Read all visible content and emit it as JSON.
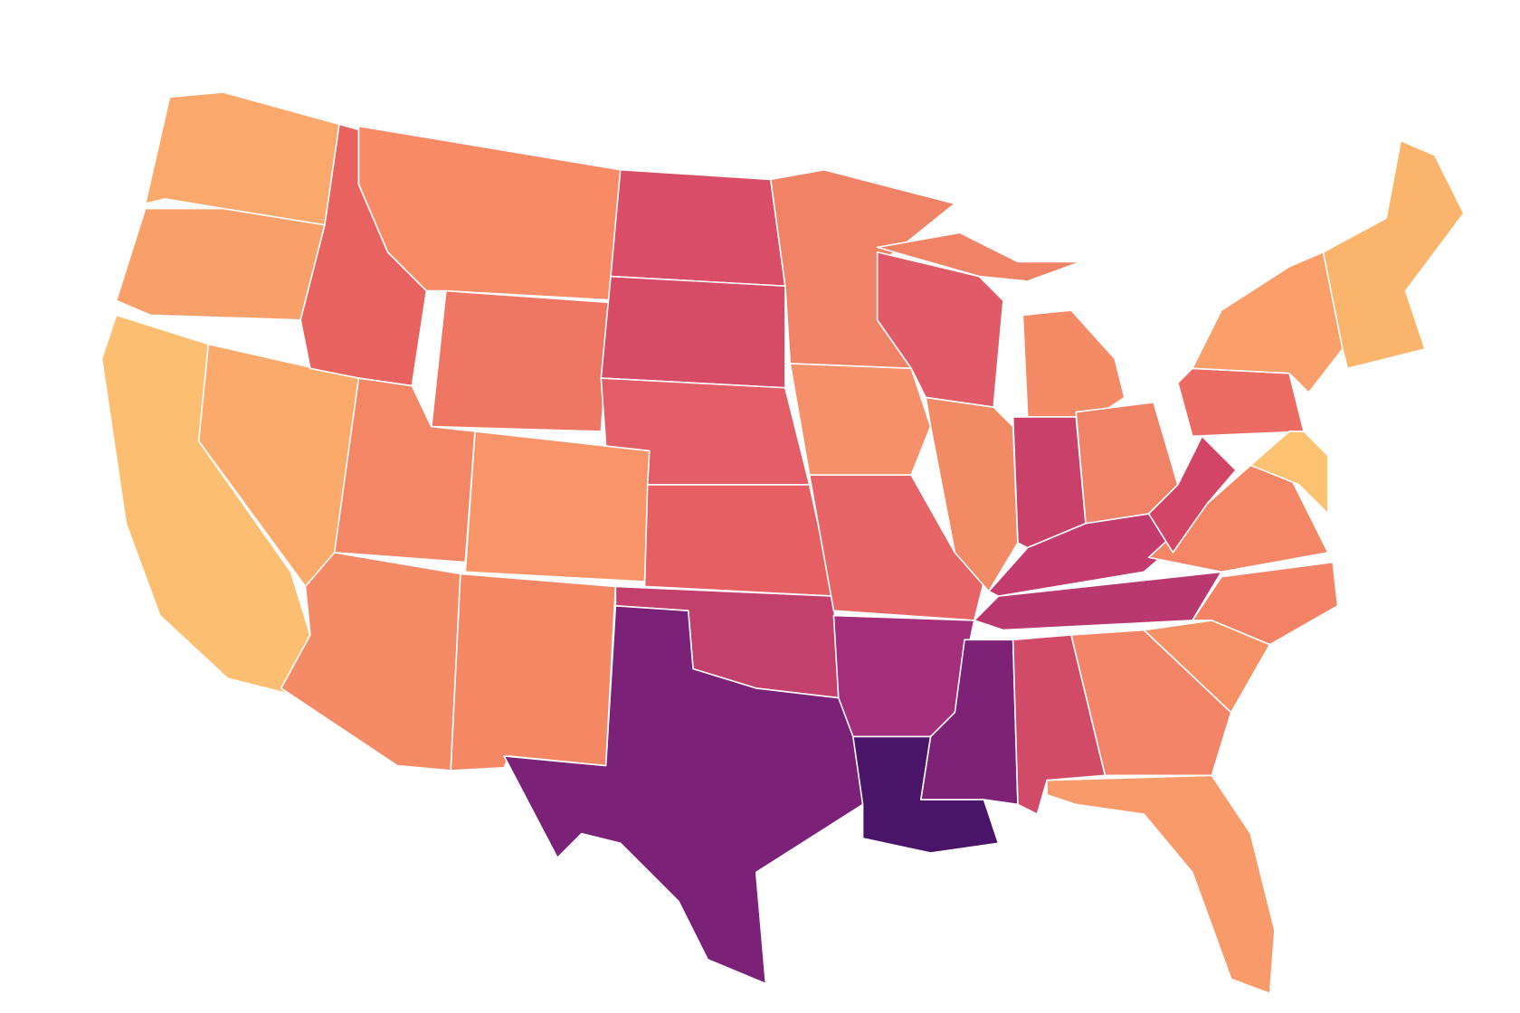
{
  "map": {
    "stroke": "#ffffff",
    "regions": [
      {
        "color": "#fba86c"
      },
      {
        "color": "#f9a06a"
      },
      {
        "color": "#fcbf72"
      },
      {
        "color": "#fbaa6c"
      },
      {
        "color": "#e8625f"
      },
      {
        "color": "#f88b66"
      },
      {
        "color": "#ee7662"
      },
      {
        "color": "#f38665"
      },
      {
        "color": "#f89467"
      },
      {
        "color": "#f58a66"
      },
      {
        "color": "#f48864"
      },
      {
        "color": "#d94e66"
      },
      {
        "color": "#d64c67"
      },
      {
        "color": "#e35d66"
      },
      {
        "color": "#e55f63"
      },
      {
        "color": "#c3406d"
      },
      {
        "color": "#7c2178"
      },
      {
        "color": "#f08366"
      },
      {
        "color": "#f5906a"
      },
      {
        "color": "#e76467"
      },
      {
        "color": "#a42e7a"
      },
      {
        "color": "#4a1468"
      },
      {
        "color": "#e15a67"
      },
      {
        "color": "#f28a66"
      },
      {
        "color": "#f58a67"
      },
      {
        "color": "#f08366"
      },
      {
        "color": "#c9406b"
      },
      {
        "color": "#f08266"
      },
      {
        "color": "#c43b6e"
      },
      {
        "color": "#b9386f"
      },
      {
        "color": "#7e2278"
      },
      {
        "color": "#d14a68"
      },
      {
        "color": "#f48467"
      },
      {
        "color": "#f99a6a"
      },
      {
        "color": "#f89066"
      },
      {
        "color": "#f48365"
      },
      {
        "color": "#f48565"
      },
      {
        "color": "#d34566"
      },
      {
        "color": "#ec6c63"
      },
      {
        "color": "#fa9e6a"
      },
      {
        "color": "#fbb46c"
      },
      {
        "color": "#fcc272"
      }
    ]
  }
}
